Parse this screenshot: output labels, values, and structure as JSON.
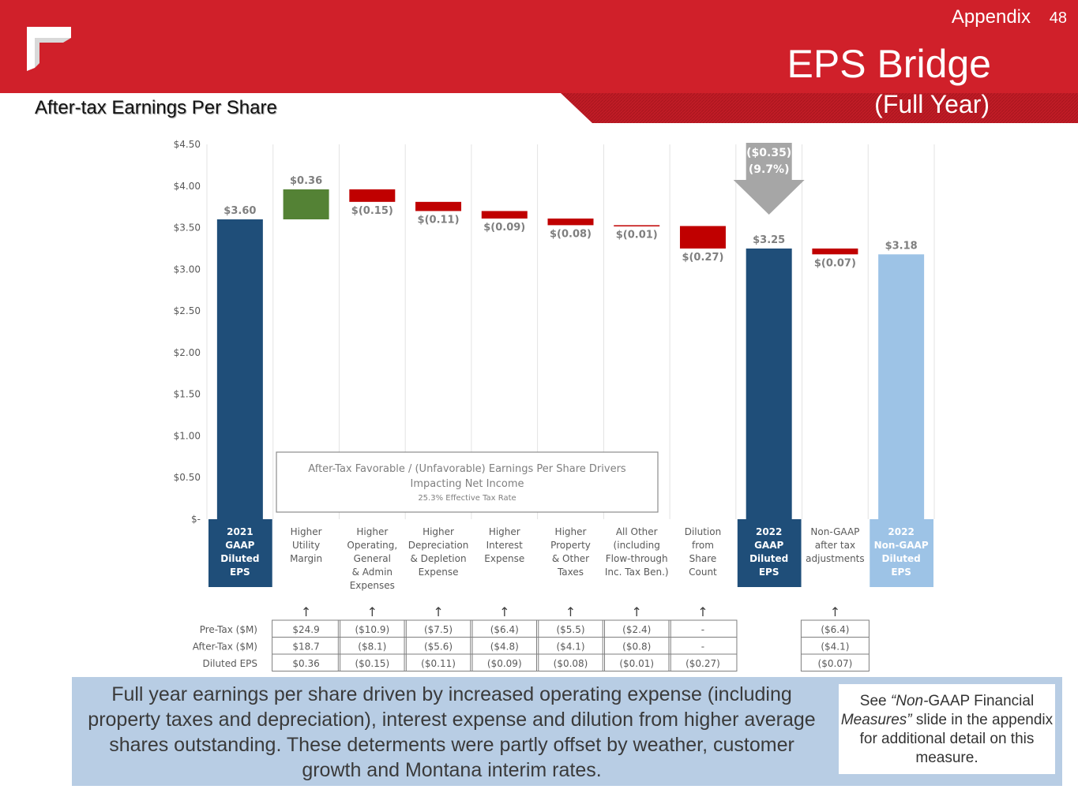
{
  "header": {
    "section": "Appendix",
    "page_number": "48",
    "title": "EPS Bridge",
    "subtitle": "(Full Year)",
    "chart_heading": "After-tax Earnings Per Share"
  },
  "colors": {
    "header_red": "#d0202a",
    "navy": "#1f4e79",
    "light_blue": "#9dc3e6",
    "green": "#548235",
    "red": "#c00000",
    "gray_arrow": "#a6a6a6",
    "summary_bg": "#b8cde4"
  },
  "chart_data": {
    "type": "bar",
    "subtype": "waterfall",
    "ylim": [
      0,
      4.5
    ],
    "y_ticks": [
      "$-",
      "$0.50",
      "$1.00",
      "$1.50",
      "$2.00",
      "$2.50",
      "$3.00",
      "$3.50",
      "$4.00",
      "$4.50"
    ],
    "categories": [
      [
        "2021",
        "GAAP",
        "Diluted",
        "EPS"
      ],
      [
        "Higher",
        "Utility",
        "Margin"
      ],
      [
        "Higher",
        "Operating,",
        "General",
        "& Admin",
        "Expenses"
      ],
      [
        "Higher",
        "Depreciation",
        "& Depletion",
        "Expense"
      ],
      [
        "Higher",
        "Interest",
        "Expense"
      ],
      [
        "Higher",
        "Property",
        "& Other",
        "Taxes"
      ],
      [
        "All Other",
        "(including",
        "Flow-through",
        "Inc. Tax Ben.)"
      ],
      [
        "Dilution",
        "from",
        "Share",
        "Count"
      ],
      [
        "2022",
        "GAAP",
        "Diluted",
        "EPS"
      ],
      [
        "Non-GAAP",
        "after tax",
        "adjustments"
      ],
      [
        "2022",
        "Non-GAAP",
        "Diluted",
        "EPS"
      ]
    ],
    "bars": [
      {
        "kind": "total",
        "start": 0,
        "end": 3.6,
        "label": "$3.60",
        "color": "#1f4e79"
      },
      {
        "kind": "increase",
        "start": 3.6,
        "end": 3.96,
        "label": "$0.36",
        "color": "#548235"
      },
      {
        "kind": "decrease",
        "start": 3.96,
        "end": 3.81,
        "label": "$(0.15)",
        "color": "#c00000"
      },
      {
        "kind": "decrease",
        "start": 3.81,
        "end": 3.7,
        "label": "$(0.11)",
        "color": "#c00000"
      },
      {
        "kind": "decrease",
        "start": 3.7,
        "end": 3.61,
        "label": "$(0.09)",
        "color": "#c00000"
      },
      {
        "kind": "decrease",
        "start": 3.61,
        "end": 3.53,
        "label": "$(0.08)",
        "color": "#c00000"
      },
      {
        "kind": "decrease",
        "start": 3.53,
        "end": 3.52,
        "label": "$(0.01)",
        "color": "#c00000"
      },
      {
        "kind": "decrease",
        "start": 3.52,
        "end": 3.25,
        "label": "$(0.27)",
        "color": "#c00000"
      },
      {
        "kind": "total",
        "start": 0,
        "end": 3.25,
        "label": "$3.25",
        "color": "#1f4e79"
      },
      {
        "kind": "decrease",
        "start": 3.25,
        "end": 3.18,
        "label": "$(0.07)",
        "color": "#c00000"
      },
      {
        "kind": "total",
        "start": 0,
        "end": 3.18,
        "label": "$3.18",
        "color": "#9dc3e6"
      }
    ],
    "change_callout": [
      "($0.35)",
      "(9.7%)"
    ],
    "drivers_box": {
      "title_lines": [
        "After-Tax Favorable / (Unfavorable) Earnings Per Share Drivers",
        "Impacting Net Income"
      ],
      "note": "25.3% Effective Tax Rate"
    },
    "table": {
      "row_labels": [
        "Pre-Tax ($M)",
        "After-Tax ($M)",
        "Diluted EPS"
      ],
      "columns": [
        {
          "bar_index": 1,
          "values": [
            "$24.9",
            "$18.7",
            "$0.36"
          ]
        },
        {
          "bar_index": 2,
          "values": [
            "($10.9)",
            "($8.1)",
            "($0.15)"
          ]
        },
        {
          "bar_index": 3,
          "values": [
            "($7.5)",
            "($5.6)",
            "($0.11)"
          ]
        },
        {
          "bar_index": 4,
          "values": [
            "($6.4)",
            "($4.8)",
            "($0.09)"
          ]
        },
        {
          "bar_index": 5,
          "values": [
            "($5.5)",
            "($4.1)",
            "($0.08)"
          ]
        },
        {
          "bar_index": 6,
          "values": [
            "($2.4)",
            "($0.8)",
            "($0.01)"
          ]
        },
        {
          "bar_index": 7,
          "values": [
            "-",
            "-",
            "($0.27)"
          ]
        },
        {
          "bar_index": 9,
          "values": [
            "($6.4)",
            "($4.1)",
            "($0.07)"
          ]
        }
      ],
      "arrow_glyph": "↑"
    }
  },
  "summary": {
    "text": "Full year earnings per share driven by increased operating expense (including property taxes and depreciation), interest expense and dilution from higher average shares outstanding.  These determents were  partly offset by weather, customer growth and Montana interim rates.",
    "note_prefix": "See ",
    "note_emph_1": "“Non-",
    "note_mid": "GAAP Financial ",
    "note_emph_2": "Measures”",
    "note_suffix": " slide in the appendix for additional detail on this measure."
  }
}
